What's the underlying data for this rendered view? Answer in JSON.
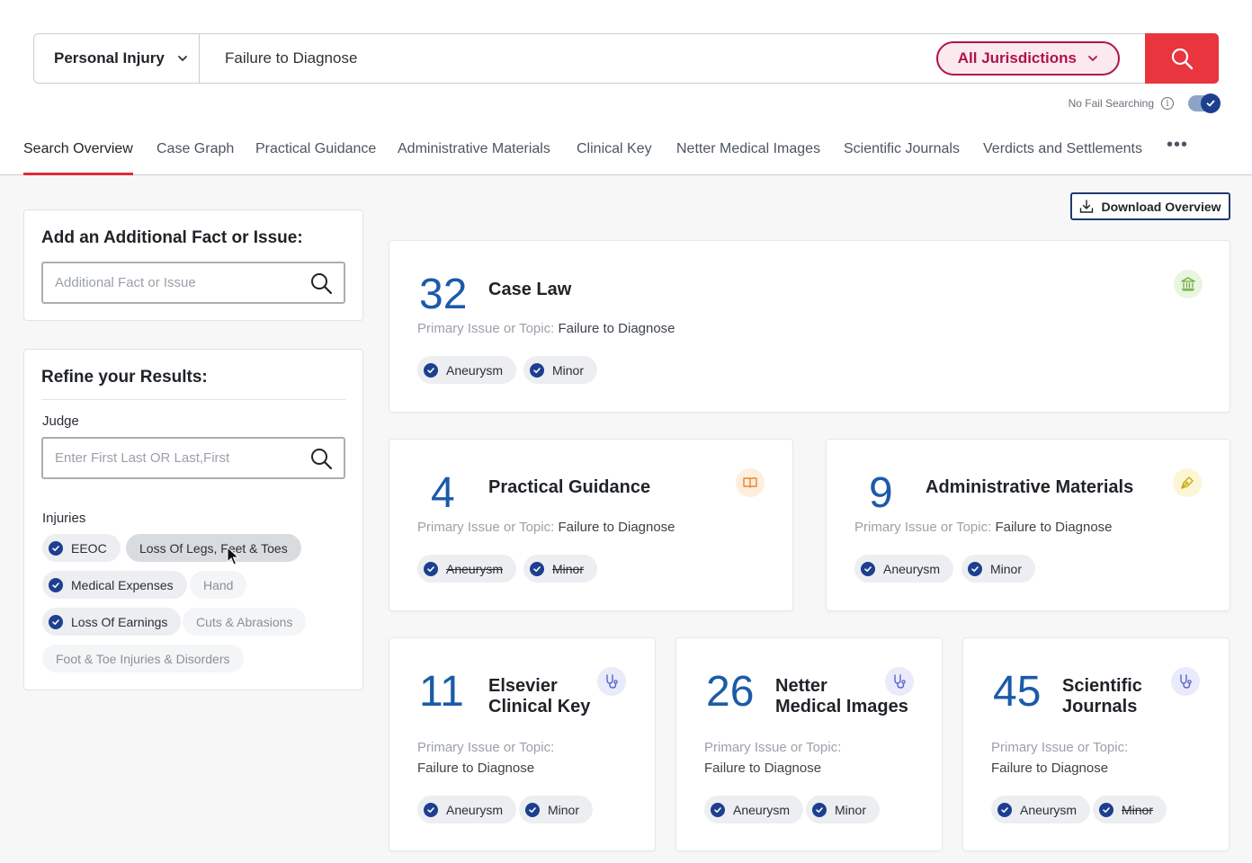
{
  "search": {
    "practice_area": "Personal Injury",
    "query": "Failure to Diagnose",
    "jurisdiction": "All Jurisdictions",
    "no_fail_label": "No Fail Searching",
    "info_glyph": "i"
  },
  "tabs": [
    "Search Overview",
    "Case Graph",
    "Practical Guidance",
    "Administrative Materials",
    "Clinical Key",
    "Netter Medical Images",
    "Scientific Journals",
    "Verdicts and Settlements"
  ],
  "more_label": "•••",
  "download_label": "Download Overview",
  "add_fact": {
    "title": "Add an Additional Fact or Issue:",
    "placeholder": "Additional Fact or Issue"
  },
  "refine": {
    "title": "Refine your Results:",
    "judge_label": "Judge",
    "judge_placeholder": "Enter First Last OR Last,First",
    "injuries_label": "Injuries",
    "injuries": [
      {
        "label": "EEOC",
        "state": "on"
      },
      {
        "label": "Loss Of Legs, Feet & Toes",
        "state": "hover"
      },
      {
        "label": "Medical Expenses",
        "state": "on"
      },
      {
        "label": "Hand",
        "state": "off"
      },
      {
        "label": "Loss Of Earnings",
        "state": "on"
      },
      {
        "label": "Cuts & Abrasions",
        "state": "off"
      },
      {
        "label": "Foot & Toe Injuries & Disorders",
        "state": "off"
      }
    ]
  },
  "pit_label": "Primary Issue or Topic:",
  "pit_value": "Failure to Diagnose",
  "cards": [
    {
      "count": "32",
      "title": "Case Law",
      "icon": "courthouse-icon",
      "chips": [
        {
          "label": "Aneurysm",
          "struck": false
        },
        {
          "label": "Minor",
          "struck": false
        }
      ]
    },
    {
      "count": "4",
      "title": "Practical Guidance",
      "icon": "book-icon",
      "chips": [
        {
          "label": "Aneurysm",
          "struck": true
        },
        {
          "label": "Minor",
          "struck": true
        }
      ]
    },
    {
      "count": "9",
      "title": "Administrative Materials",
      "icon": "pen-icon",
      "chips": [
        {
          "label": "Aneurysm",
          "struck": false
        },
        {
          "label": "Minor",
          "struck": false
        }
      ]
    },
    {
      "count": "11",
      "title_line1": "Elsevier",
      "title_line2": "Clinical Key",
      "icon": "stethoscope-icon",
      "chips": [
        {
          "label": "Aneurysm",
          "struck": false
        },
        {
          "label": "Minor",
          "struck": false
        }
      ]
    },
    {
      "count": "26",
      "title_line1": "Netter",
      "title_line2": "Medical Images",
      "icon": "stethoscope-icon",
      "chips": [
        {
          "label": "Aneurysm",
          "struck": false
        },
        {
          "label": "Minor",
          "struck": false
        }
      ]
    },
    {
      "count": "45",
      "title_line1": "Scientific",
      "title_line2": "Journals",
      "icon": "stethoscope-icon",
      "chips": [
        {
          "label": "Aneurysm",
          "struck": false
        },
        {
          "label": "Minor",
          "struck": true
        }
      ]
    }
  ],
  "colors": {
    "accent_red": "#e8353e",
    "brand_blue": "#1b5ba8",
    "jurisdiction": "#b0124e"
  }
}
